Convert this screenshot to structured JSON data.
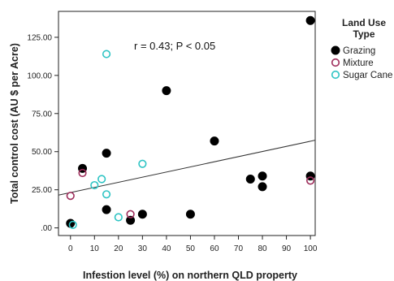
{
  "chart_data": {
    "type": "scatter",
    "xlabel": "Infestion level (%) on northern QLD property",
    "ylabel": "Total control cost (AU $ per Acre)",
    "xlim": [
      -5,
      102
    ],
    "ylim": [
      -5,
      142
    ],
    "x_ticks": [
      0,
      10,
      20,
      30,
      40,
      50,
      60,
      70,
      80,
      90,
      100
    ],
    "x_tick_labels": [
      "0",
      "10",
      "20",
      "30",
      "40",
      "50",
      "60",
      "70",
      "80",
      "90",
      "100"
    ],
    "y_ticks": [
      0,
      25,
      50,
      75,
      100,
      125
    ],
    "y_tick_labels": [
      ".00",
      "25.00",
      "50.00",
      "75.00",
      "100.00",
      "125.00"
    ],
    "annotation": "r = 0.43; P < 0.05",
    "grid": false,
    "fit_line": {
      "x": [
        -5,
        102
      ],
      "y": [
        21.5,
        57.5
      ]
    },
    "legend": {
      "title": "Land Use Type",
      "placement": "right"
    },
    "series": [
      {
        "name": "Grazing",
        "marker": "filled-circle",
        "color": "#000000",
        "points": [
          [
            0,
            3
          ],
          [
            5,
            39
          ],
          [
            15,
            49
          ],
          [
            15,
            12
          ],
          [
            25,
            5
          ],
          [
            30,
            9
          ],
          [
            40,
            90
          ],
          [
            50,
            9
          ],
          [
            60,
            57
          ],
          [
            75,
            32
          ],
          [
            80,
            34
          ],
          [
            80,
            27
          ],
          [
            100,
            136
          ],
          [
            100,
            34
          ]
        ]
      },
      {
        "name": "Mixture",
        "marker": "open-circle",
        "color": "#9e2d5b",
        "points": [
          [
            0,
            21
          ],
          [
            5,
            36
          ],
          [
            25,
            9
          ],
          [
            100,
            31
          ]
        ]
      },
      {
        "name": "Sugar Cane",
        "marker": "open-circle",
        "color": "#2ec4c4",
        "points": [
          [
            1,
            2
          ],
          [
            10,
            28
          ],
          [
            13,
            32
          ],
          [
            15,
            22
          ],
          [
            15,
            114
          ],
          [
            20,
            7
          ],
          [
            30,
            42
          ]
        ]
      }
    ]
  }
}
